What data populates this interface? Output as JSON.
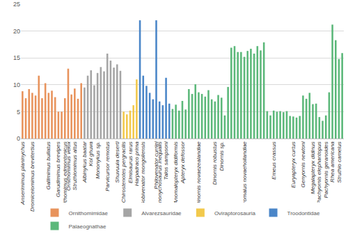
{
  "chart_data": {
    "type": "bar",
    "categories": [
      "Anserimimus planinychus",
      null,
      null,
      "Dromiceiomimus brevitertius",
      null,
      null,
      null,
      null,
      "Gallimimus bullatus",
      null,
      null,
      "Garudimimus brevipes",
      null,
      "Ornithomimus edmontonicus",
      "Ornithomimus velox",
      null,
      "Struthiomimus altus",
      null,
      null,
      "Albinykus baatar",
      null,
      "Kol ghuva",
      null,
      "Mononykus sp.",
      null,
      null,
      "Parvicursor remotus",
      null,
      null,
      "Shuvuuia deserti",
      null,
      "Chirostenotes pergracilis",
      null,
      "Elmisaurus rarus",
      null,
      "Harpadraco prima",
      null,
      "Gobivenator mongoliensis",
      null,
      null,
      null,
      "Philovenator curriei",
      "Stenonychosaurus inequalis",
      null,
      "Talos sampsoni",
      null,
      null,
      "Anomalopteryx didiformis",
      null,
      "Apteryx defossor",
      null,
      null,
      null,
      null,
      "Dinornis novaezealandiae",
      null,
      null,
      null,
      null,
      "Dinornis robustus",
      null,
      "Dinornis sp.",
      null,
      null,
      null,
      null,
      null,
      null,
      "Dromaius novaehollandiae",
      null,
      null,
      null,
      null,
      null,
      null,
      null,
      null,
      "Emeus crassus",
      null,
      null,
      null,
      null,
      null,
      "Euryapteryx curtus",
      null,
      null,
      "Genyornis newtoni",
      null,
      null,
      "Megalapteryx didinus",
      null,
      "Pachyornis elephantopus",
      null,
      "Pachyornis geranoides",
      null,
      "Rhea americana",
      null,
      "Struthio camelus",
      null
    ],
    "series": [
      {
        "name": "Ornithomimidae",
        "color": "#e8935c",
        "values": [
          8.8,
          7.5,
          9.2,
          8.5,
          8.0,
          11.7,
          7.5,
          10.3,
          8.5,
          8.9,
          7.7,
          5.0,
          5.0,
          7.5,
          13.0,
          8.2,
          9.3,
          7.4,
          10.3,
          null,
          null,
          null,
          null,
          null,
          null,
          null,
          null,
          null,
          null,
          null,
          null,
          null,
          null,
          null,
          null,
          null,
          null,
          null,
          null,
          null,
          null,
          null,
          null,
          null,
          null,
          null,
          null,
          null,
          null,
          null,
          null,
          null,
          null,
          null,
          null,
          null,
          null,
          null,
          null,
          null,
          null,
          null,
          null,
          null,
          null,
          null,
          null,
          null,
          null,
          null,
          null,
          null,
          null,
          null,
          null,
          null,
          null,
          null,
          null,
          null,
          null,
          null,
          null,
          null,
          null,
          null,
          null,
          null,
          null,
          null,
          null,
          null,
          null,
          null,
          null,
          null,
          null,
          null,
          null
        ]
      },
      {
        "name": "Alvarezsauridae",
        "color": "#a5a5a5",
        "values": [
          null,
          null,
          null,
          null,
          null,
          null,
          null,
          null,
          null,
          null,
          null,
          null,
          null,
          null,
          null,
          null,
          null,
          null,
          null,
          9.5,
          11.7,
          12.7,
          9.9,
          12.2,
          13.3,
          12.5,
          15.8,
          14.5,
          13.2,
          13.8,
          12.6,
          null,
          null,
          null,
          null,
          null,
          null,
          null,
          null,
          null,
          null,
          null,
          null,
          null,
          null,
          null,
          null,
          null,
          null,
          null,
          null,
          null,
          null,
          null,
          null,
          null,
          null,
          null,
          null,
          null,
          null,
          null,
          null,
          null,
          null,
          null,
          null,
          null,
          null,
          null,
          null,
          null,
          null,
          null,
          null,
          null,
          null,
          null,
          null,
          null,
          null,
          null,
          null,
          null,
          null,
          null,
          null,
          null,
          null,
          null,
          null,
          null,
          null,
          null,
          null,
          null,
          null,
          null,
          null
        ]
      },
      {
        "name": "Oviraptorosauria",
        "color": "#f2c94c",
        "values": [
          null,
          null,
          null,
          null,
          null,
          null,
          null,
          null,
          null,
          null,
          null,
          null,
          null,
          null,
          null,
          null,
          null,
          null,
          null,
          null,
          null,
          null,
          null,
          null,
          null,
          null,
          null,
          null,
          null,
          null,
          null,
          5.0,
          4.5,
          5.2,
          6.2,
          11.0,
          null,
          null,
          null,
          null,
          null,
          null,
          null,
          null,
          null,
          null,
          null,
          null,
          null,
          null,
          null,
          null,
          null,
          null,
          null,
          null,
          null,
          null,
          null,
          null,
          null,
          null,
          null,
          null,
          null,
          null,
          null,
          null,
          null,
          null,
          null,
          null,
          null,
          null,
          null,
          null,
          null,
          null,
          null,
          null,
          null,
          null,
          null,
          null,
          null,
          null,
          null,
          null,
          null,
          null,
          null,
          null,
          null,
          null,
          null,
          null,
          null,
          null,
          null
        ]
      },
      {
        "name": "Troodontidae",
        "color": "#4a86c8",
        "values": [
          null,
          null,
          null,
          null,
          null,
          null,
          null,
          null,
          null,
          null,
          null,
          null,
          null,
          null,
          null,
          null,
          null,
          null,
          null,
          null,
          null,
          null,
          null,
          null,
          null,
          null,
          null,
          null,
          null,
          null,
          null,
          null,
          null,
          null,
          null,
          null,
          22.0,
          11.7,
          9.8,
          8.5,
          7.3,
          22.0,
          6.9,
          6.2,
          11.3,
          6.5,
          null,
          null,
          null,
          null,
          null,
          null,
          null,
          null,
          null,
          null,
          null,
          null,
          null,
          null,
          null,
          null,
          null,
          null,
          null,
          null,
          null,
          null,
          null,
          null,
          null,
          null,
          null,
          null,
          null,
          null,
          null,
          null,
          null,
          null,
          null,
          null,
          null,
          null,
          null,
          null,
          null,
          null,
          null,
          null,
          null,
          null,
          null,
          null,
          null,
          null,
          null,
          null,
          null
        ]
      },
      {
        "name": "Palaeognathae",
        "color": "#5cb87a",
        "values": [
          null,
          null,
          null,
          null,
          null,
          null,
          null,
          null,
          null,
          null,
          null,
          null,
          null,
          null,
          null,
          null,
          null,
          null,
          null,
          null,
          null,
          null,
          null,
          null,
          null,
          null,
          null,
          null,
          null,
          null,
          null,
          null,
          null,
          null,
          null,
          null,
          null,
          null,
          null,
          null,
          null,
          null,
          null,
          null,
          null,
          null,
          5.5,
          6.3,
          5.2,
          7.0,
          5.4,
          9.2,
          8.3,
          10.1,
          8.6,
          8.3,
          7.8,
          9.0,
          7.3,
          6.9,
          8.1,
          7.6,
          4.3,
          9.6,
          16.9,
          17.2,
          16.1,
          16.1,
          15.2,
          16.3,
          16.7,
          15.8,
          17.2,
          16.4,
          17.9,
          5.1,
          4.3,
          5.2,
          5.0,
          5.1,
          4.9,
          5.1,
          4.2,
          4.1,
          3.9,
          4.2,
          8.0,
          7.4,
          8.5,
          6.4,
          6.5,
          4.0,
          3.3,
          4.3,
          8.6,
          21.2,
          18.3,
          14.8,
          15.9
        ]
      }
    ],
    "ylim": [
      0,
      25
    ],
    "yticks": [
      0,
      5,
      10,
      15,
      20,
      25
    ],
    "grid": true,
    "legend": "bottom"
  }
}
